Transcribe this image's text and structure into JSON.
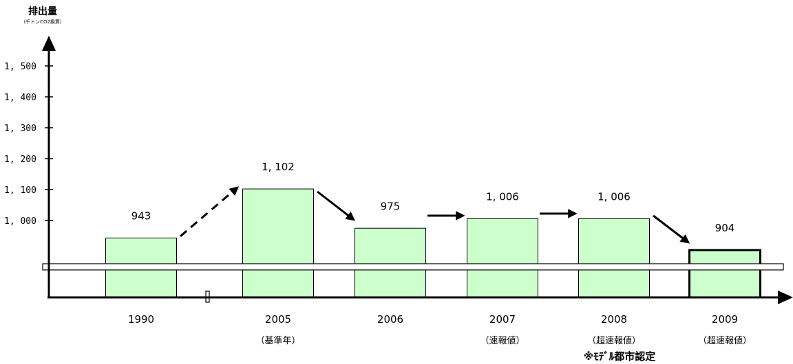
{
  "chart_data": {
    "type": "bar",
    "ylabel": "排出量",
    "yunit": "（千トンCO2換算）",
    "ylim": [
      790,
      1530
    ],
    "yticks": [
      1000,
      1100,
      1200,
      1300,
      1400,
      1500
    ],
    "ytick_labels": [
      "1, 000",
      "1, 100",
      "1, 200",
      "1, 300",
      "1, 400",
      "1, 500"
    ],
    "axis_break": true,
    "categories": [
      "1990",
      "2005",
      "2006",
      "2007",
      "2008",
      "2009"
    ],
    "category_notes": [
      "",
      "（基準年）",
      "",
      "（速報値）",
      "（超速報値）",
      "（超速報値）"
    ],
    "values": [
      943,
      1102,
      975,
      1006,
      1006,
      904
    ],
    "value_labels": [
      "943",
      "1, 102",
      "975",
      "1, 006",
      "1, 006",
      "904"
    ],
    "bar_color": "#ccffcc",
    "highlighted_index": 5,
    "transitions": [
      "dashed-up",
      "solid-down",
      "solid-flat",
      "solid-flat",
      "solid-down"
    ],
    "footnote": "※ﾓﾃﾞﾙ都市認定"
  }
}
